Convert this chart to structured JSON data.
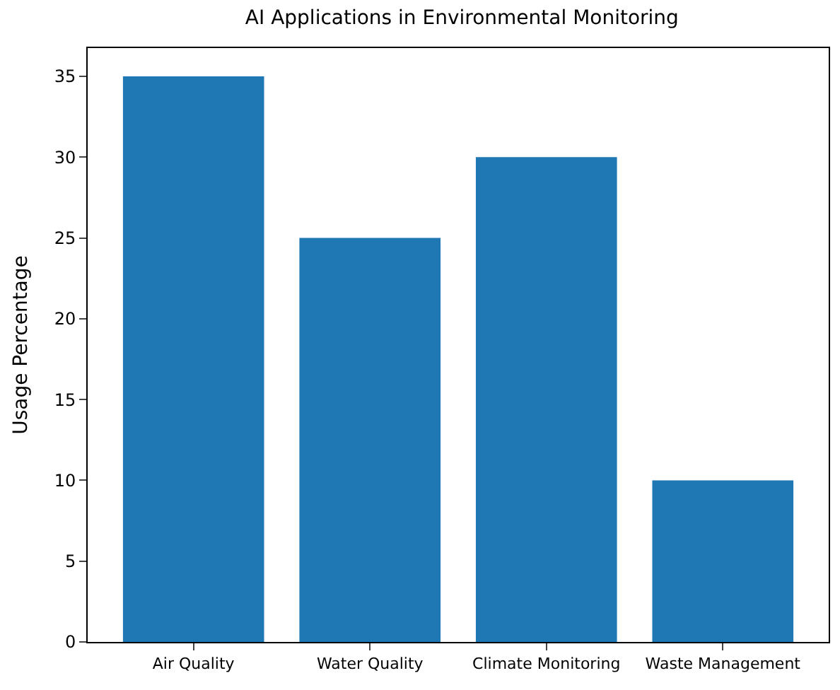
{
  "chart_data": {
    "type": "bar",
    "title": "AI Applications in Environmental Monitoring",
    "ylabel": "Usage Percentage",
    "categories": [
      "Air Quality",
      "Water Quality",
      "Climate Monitoring",
      "Waste Management"
    ],
    "values": [
      35,
      25,
      30,
      10
    ],
    "color": "#1f77b4",
    "ylim": [
      0,
      36.75
    ],
    "yticks": [
      0,
      5,
      10,
      15,
      20,
      25,
      30,
      35
    ]
  }
}
